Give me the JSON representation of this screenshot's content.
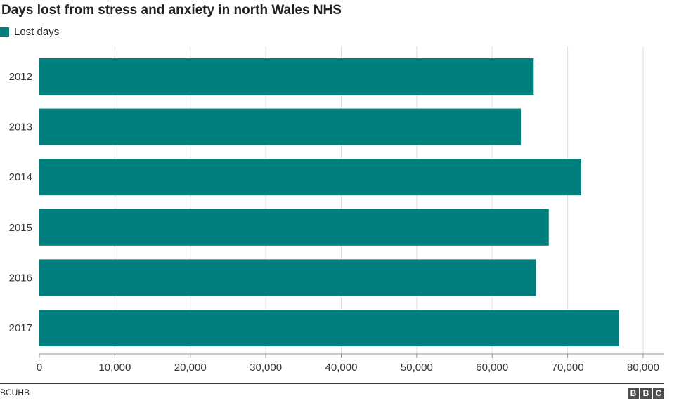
{
  "chart_data": {
    "type": "bar",
    "orientation": "horizontal",
    "title": "Days lost from stress and anxiety in north Wales NHS",
    "legend": {
      "placement": "top-left",
      "entries": [
        "Lost days"
      ]
    },
    "categories": [
      "2012",
      "2013",
      "2014",
      "2015",
      "2016",
      "2017"
    ],
    "series": [
      {
        "name": "Lost days",
        "values": [
          65500,
          63800,
          71800,
          67500,
          65800,
          76800
        ]
      }
    ],
    "xlim": [
      0,
      82500
    ],
    "xticks": [
      0,
      10000,
      20000,
      30000,
      40000,
      50000,
      60000,
      70000,
      80000
    ],
    "xtick_labels": [
      "0",
      "10,000",
      "20,000",
      "30,000",
      "40,000",
      "50,000",
      "60,000",
      "70,000",
      "80,000"
    ],
    "grid": "vertical",
    "bar_color": "#007f7f",
    "grid_color": "#dddddd"
  },
  "footer": {
    "source": "BCUHB",
    "logo_letters": [
      "B",
      "B",
      "C"
    ]
  }
}
